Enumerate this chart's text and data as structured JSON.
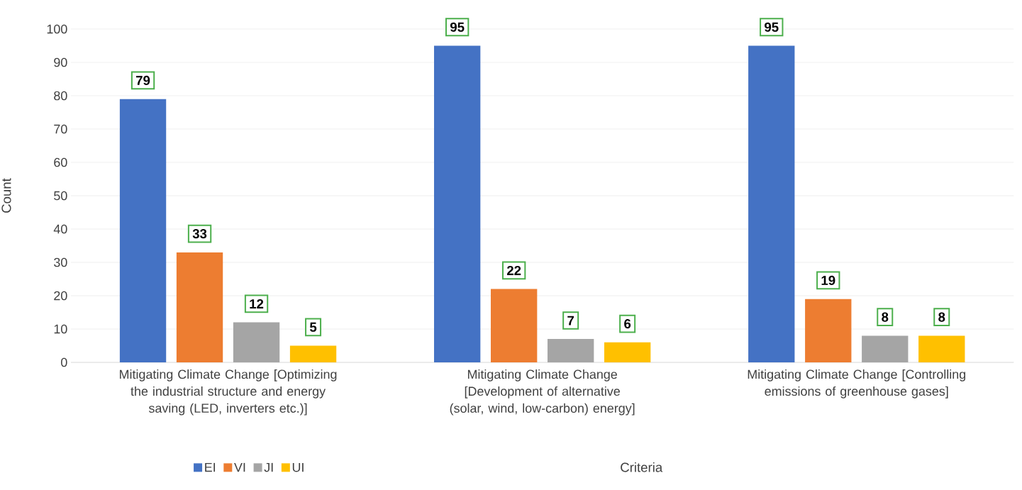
{
  "chart_data": {
    "type": "bar",
    "xlabel": "Criteria",
    "ylabel": "Count",
    "categories": [
      "Mitigating Climate Change [Optimizing the industrial structure and energy saving (LED, inverters etc.)]",
      "Mitigating Climate Change [Development of alternative (solar, wind, low-carbon) energy]",
      "Mitigating Climate Change [Controlling emissions of greenhouse gases]"
    ],
    "series": [
      {
        "name": "EI",
        "color": "#4472c4",
        "values": [
          79,
          95,
          95
        ]
      },
      {
        "name": "VI",
        "color": "#ed7d31",
        "values": [
          33,
          22,
          19
        ]
      },
      {
        "name": "JI",
        "color": "#a5a5a5",
        "values": [
          12,
          7,
          8
        ]
      },
      {
        "name": "UI",
        "color": "#ffc000",
        "values": [
          5,
          6,
          8
        ]
      }
    ],
    "ylim": [
      0,
      100
    ],
    "yticks": [
      0,
      10,
      20,
      30,
      40,
      50,
      60,
      70,
      80,
      90,
      100
    ],
    "grid": "y",
    "legend": "bottom",
    "data_labels": true
  }
}
